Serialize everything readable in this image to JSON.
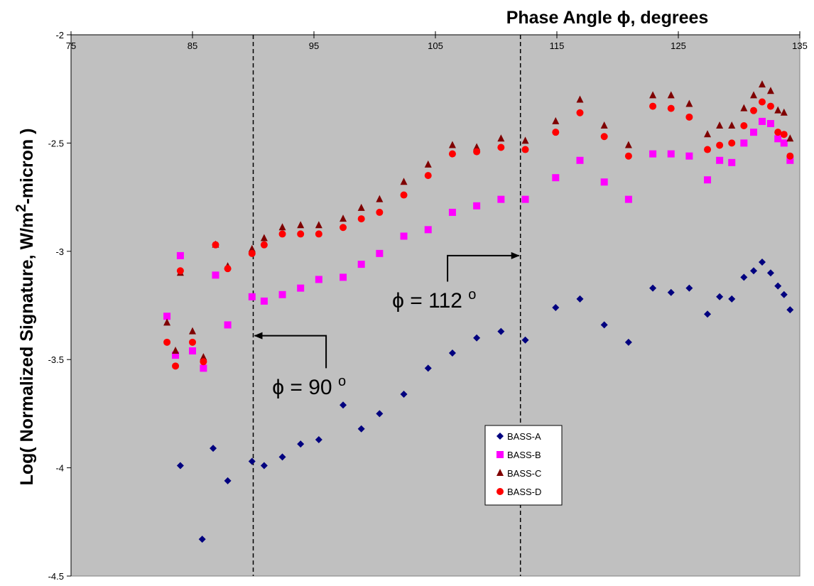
{
  "chart_data": {
    "type": "scatter",
    "title": "",
    "xlabel": "Phase Angle ϕ, degrees",
    "ylabel_main": "Log( Normalized Signature, W/m",
    "ylabel_sup": "2",
    "ylabel_end": "-micron )",
    "xlim": [
      75,
      135
    ],
    "ylim": [
      -4.5,
      -2
    ],
    "xticks": [
      75,
      85,
      95,
      105,
      115,
      125,
      135
    ],
    "yticks": [
      -2,
      -2.5,
      -3,
      -3.5,
      -4,
      -4.5
    ],
    "x_axis_position": "top",
    "plot_background": "#c0c0c0",
    "grid": false,
    "legend_position": "lower-middle",
    "series": [
      {
        "name": "BASS-A",
        "marker": "diamond",
        "color": "#00007f",
        "points": [
          [
            84.0,
            -3.99
          ],
          [
            85.8,
            -4.33
          ],
          [
            86.7,
            -3.91
          ],
          [
            87.9,
            -4.06
          ],
          [
            89.9,
            -3.97
          ],
          [
            90.9,
            -3.99
          ],
          [
            92.4,
            -3.95
          ],
          [
            93.9,
            -3.89
          ],
          [
            95.4,
            -3.87
          ],
          [
            97.4,
            -3.71
          ],
          [
            98.9,
            -3.82
          ],
          [
            100.4,
            -3.75
          ],
          [
            102.4,
            -3.66
          ],
          [
            104.4,
            -3.54
          ],
          [
            106.4,
            -3.47
          ],
          [
            108.4,
            -3.4
          ],
          [
            110.4,
            -3.37
          ],
          [
            112.4,
            -3.41
          ],
          [
            114.9,
            -3.26
          ],
          [
            116.9,
            -3.22
          ],
          [
            118.9,
            -3.34
          ],
          [
            120.9,
            -3.42
          ],
          [
            122.9,
            -3.17
          ],
          [
            124.4,
            -3.19
          ],
          [
            125.9,
            -3.17
          ],
          [
            127.4,
            -3.29
          ],
          [
            128.4,
            -3.21
          ],
          [
            129.4,
            -3.22
          ],
          [
            130.4,
            -3.12
          ],
          [
            131.2,
            -3.09
          ],
          [
            131.9,
            -3.05
          ],
          [
            132.6,
            -3.1
          ],
          [
            133.2,
            -3.16
          ],
          [
            133.7,
            -3.2
          ],
          [
            134.2,
            -3.27
          ]
        ]
      },
      {
        "name": "BASS-B",
        "marker": "square",
        "color": "#ff00ff",
        "points": [
          [
            82.9,
            -3.3
          ],
          [
            83.6,
            -3.48
          ],
          [
            84.0,
            -3.02
          ],
          [
            85.0,
            -3.46
          ],
          [
            85.9,
            -3.54
          ],
          [
            86.9,
            -3.11
          ],
          [
            87.9,
            -3.34
          ],
          [
            89.9,
            -3.21
          ],
          [
            90.9,
            -3.23
          ],
          [
            92.4,
            -3.2
          ],
          [
            93.9,
            -3.17
          ],
          [
            95.4,
            -3.13
          ],
          [
            97.4,
            -3.12
          ],
          [
            98.9,
            -3.06
          ],
          [
            100.4,
            -3.01
          ],
          [
            102.4,
            -2.93
          ],
          [
            104.4,
            -2.9
          ],
          [
            106.4,
            -2.82
          ],
          [
            108.4,
            -2.79
          ],
          [
            110.4,
            -2.76
          ],
          [
            112.4,
            -2.76
          ],
          [
            114.9,
            -2.66
          ],
          [
            116.9,
            -2.58
          ],
          [
            118.9,
            -2.68
          ],
          [
            120.9,
            -2.76
          ],
          [
            122.9,
            -2.55
          ],
          [
            124.4,
            -2.55
          ],
          [
            125.9,
            -2.56
          ],
          [
            127.4,
            -2.67
          ],
          [
            128.4,
            -2.58
          ],
          [
            129.4,
            -2.59
          ],
          [
            130.4,
            -2.5
          ],
          [
            131.2,
            -2.45
          ],
          [
            131.9,
            -2.4
          ],
          [
            132.6,
            -2.41
          ],
          [
            133.2,
            -2.48
          ],
          [
            133.7,
            -2.5
          ],
          [
            134.2,
            -2.58
          ]
        ]
      },
      {
        "name": "BASS-C",
        "marker": "triangle",
        "color": "#7f0000",
        "points": [
          [
            82.9,
            -3.33
          ],
          [
            83.6,
            -3.46
          ],
          [
            84.0,
            -3.1
          ],
          [
            85.0,
            -3.37
          ],
          [
            85.9,
            -3.49
          ],
          [
            86.9,
            -2.97
          ],
          [
            87.9,
            -3.07
          ],
          [
            89.9,
            -2.99
          ],
          [
            90.9,
            -2.94
          ],
          [
            92.4,
            -2.89
          ],
          [
            93.9,
            -2.88
          ],
          [
            95.4,
            -2.88
          ],
          [
            97.4,
            -2.85
          ],
          [
            98.9,
            -2.8
          ],
          [
            100.4,
            -2.76
          ],
          [
            102.4,
            -2.68
          ],
          [
            104.4,
            -2.6
          ],
          [
            106.4,
            -2.51
          ],
          [
            108.4,
            -2.52
          ],
          [
            110.4,
            -2.48
          ],
          [
            112.4,
            -2.49
          ],
          [
            114.9,
            -2.4
          ],
          [
            116.9,
            -2.3
          ],
          [
            118.9,
            -2.42
          ],
          [
            120.9,
            -2.51
          ],
          [
            122.9,
            -2.28
          ],
          [
            124.4,
            -2.28
          ],
          [
            125.9,
            -2.32
          ],
          [
            127.4,
            -2.46
          ],
          [
            128.4,
            -2.42
          ],
          [
            129.4,
            -2.42
          ],
          [
            130.4,
            -2.34
          ],
          [
            131.2,
            -2.28
          ],
          [
            131.9,
            -2.23
          ],
          [
            132.6,
            -2.26
          ],
          [
            133.2,
            -2.35
          ],
          [
            133.7,
            -2.36
          ],
          [
            134.2,
            -2.48
          ]
        ]
      },
      {
        "name": "BASS-D",
        "marker": "circle",
        "color": "#ff0000",
        "points": [
          [
            82.9,
            -3.42
          ],
          [
            83.6,
            -3.53
          ],
          [
            84.0,
            -3.09
          ],
          [
            85.0,
            -3.42
          ],
          [
            85.9,
            -3.51
          ],
          [
            86.9,
            -2.97
          ],
          [
            87.9,
            -3.08
          ],
          [
            89.9,
            -3.01
          ],
          [
            90.9,
            -2.97
          ],
          [
            92.4,
            -2.92
          ],
          [
            93.9,
            -2.92
          ],
          [
            95.4,
            -2.92
          ],
          [
            97.4,
            -2.89
          ],
          [
            98.9,
            -2.85
          ],
          [
            100.4,
            -2.82
          ],
          [
            102.4,
            -2.74
          ],
          [
            104.4,
            -2.65
          ],
          [
            106.4,
            -2.55
          ],
          [
            108.4,
            -2.54
          ],
          [
            110.4,
            -2.52
          ],
          [
            112.4,
            -2.53
          ],
          [
            114.9,
            -2.45
          ],
          [
            116.9,
            -2.36
          ],
          [
            118.9,
            -2.47
          ],
          [
            120.9,
            -2.56
          ],
          [
            122.9,
            -2.33
          ],
          [
            124.4,
            -2.34
          ],
          [
            125.9,
            -2.38
          ],
          [
            127.4,
            -2.53
          ],
          [
            128.4,
            -2.51
          ],
          [
            129.4,
            -2.5
          ],
          [
            130.4,
            -2.42
          ],
          [
            131.2,
            -2.35
          ],
          [
            131.9,
            -2.31
          ],
          [
            132.6,
            -2.33
          ],
          [
            133.2,
            -2.45
          ],
          [
            133.7,
            -2.46
          ],
          [
            134.2,
            -2.56
          ]
        ]
      }
    ],
    "reference_lines": [
      {
        "x": 90,
        "style": "dashed"
      },
      {
        "x": 112,
        "style": "dashed"
      }
    ],
    "annotations": [
      {
        "text": "ϕ = 90 ",
        "sup": "o",
        "anchor": [
          94.6,
          -3.66
        ],
        "arrow_from": [
          96.0,
          -3.54
        ],
        "arrow_corner": [
          96.0,
          -3.39
        ],
        "arrow_to": [
          90.0,
          -3.39
        ]
      },
      {
        "text": "ϕ = 112 ",
        "sup": "o",
        "anchor": [
          104.9,
          -3.26
        ],
        "arrow_from": [
          106.0,
          -3.14
        ],
        "arrow_corner": [
          106.0,
          -3.02
        ],
        "arrow_to": [
          112.0,
          -3.02
        ]
      }
    ]
  }
}
